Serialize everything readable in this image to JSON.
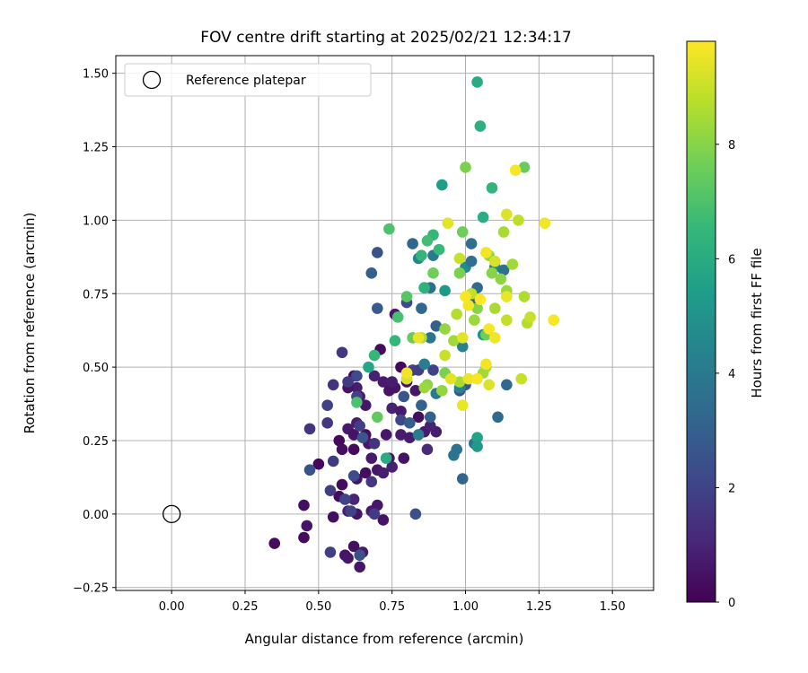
{
  "chart_data": {
    "type": "scatter",
    "title": "FOV centre drift starting at 2025/02/21 12:34:17",
    "xlabel": "Angular distance from reference (arcmin)",
    "ylabel": "Rotation from reference (arcmin)",
    "xlim": [
      -0.19,
      1.64
    ],
    "ylim": [
      -0.26,
      1.56
    ],
    "xticks": [
      "0.00",
      "0.25",
      "0.50",
      "0.75",
      "1.00",
      "1.25",
      "1.50"
    ],
    "xtick_values": [
      0,
      0.25,
      0.5,
      0.75,
      1.0,
      1.25,
      1.5
    ],
    "yticks": [
      "−0.25",
      "0.00",
      "0.25",
      "0.50",
      "0.75",
      "1.00",
      "1.25",
      "1.50"
    ],
    "ytick_values": [
      -0.25,
      0,
      0.25,
      0.5,
      0.75,
      1.0,
      1.25,
      1.5
    ],
    "grid": true,
    "legend": {
      "position": "top-left",
      "entries": [
        "Reference platepar"
      ]
    },
    "reference_point": {
      "x": 0,
      "y": 0
    },
    "colorbar": {
      "label": "Hours from first FF file",
      "range": [
        0,
        9.8
      ],
      "ticks": [
        "0",
        "2",
        "4",
        "6",
        "8"
      ],
      "tick_values": [
        0,
        2,
        4,
        6,
        8
      ],
      "colormap": "viridis",
      "colors": [
        "#440154",
        "#482878",
        "#3e4989",
        "#31688e",
        "#26828e",
        "#1f9e89",
        "#35b779",
        "#6ece58",
        "#b5de2b",
        "#fde725"
      ]
    },
    "points": [
      [
        0.35,
        -0.1,
        0.3
      ],
      [
        0.45,
        0.03,
        0.4
      ],
      [
        0.46,
        -0.04,
        0.5
      ],
      [
        0.45,
        -0.08,
        0.3
      ],
      [
        0.5,
        0.17,
        0.2
      ],
      [
        0.57,
        0.06,
        0.3
      ],
      [
        0.55,
        -0.01,
        0.4
      ],
      [
        0.59,
        -0.14,
        0.5
      ],
      [
        0.6,
        -0.15,
        0.6
      ],
      [
        0.62,
        -0.11,
        0.4
      ],
      [
        0.64,
        -0.18,
        0.6
      ],
      [
        0.65,
        -0.13,
        0.7
      ],
      [
        0.63,
        0.0,
        0.5
      ],
      [
        0.68,
        0.01,
        0.8
      ],
      [
        0.7,
        0.03,
        0.6
      ],
      [
        0.72,
        -0.02,
        0.5
      ],
      [
        0.6,
        0.01,
        0.9
      ],
      [
        0.62,
        0.05,
        1.0
      ],
      [
        0.58,
        0.1,
        0.3
      ],
      [
        0.57,
        0.25,
        0.2
      ],
      [
        0.58,
        0.22,
        0.4
      ],
      [
        0.62,
        0.22,
        0.3
      ],
      [
        0.63,
        0.12,
        0.5
      ],
      [
        0.66,
        0.14,
        0.4
      ],
      [
        0.68,
        0.19,
        0.7
      ],
      [
        0.7,
        0.15,
        0.6
      ],
      [
        0.72,
        0.14,
        0.8
      ],
      [
        0.74,
        0.19,
        0.5
      ],
      [
        0.75,
        0.16,
        0.9
      ],
      [
        0.67,
        0.24,
        0.6
      ],
      [
        0.6,
        0.29,
        0.7
      ],
      [
        0.62,
        0.27,
        0.5
      ],
      [
        0.66,
        0.27,
        0.4
      ],
      [
        0.63,
        0.31,
        0.8
      ],
      [
        0.73,
        0.27,
        0.6
      ],
      [
        0.78,
        0.27,
        0.8
      ],
      [
        0.79,
        0.19,
        0.5
      ],
      [
        0.81,
        0.26,
        0.7
      ],
      [
        0.75,
        0.36,
        0.9
      ],
      [
        0.78,
        0.35,
        0.7
      ],
      [
        0.76,
        0.43,
        0.6
      ],
      [
        0.72,
        0.45,
        0.7
      ],
      [
        0.74,
        0.42,
        0.5
      ],
      [
        0.75,
        0.45,
        0.8
      ],
      [
        0.69,
        0.47,
        0.9
      ],
      [
        0.66,
        0.37,
        0.6
      ],
      [
        0.64,
        0.4,
        0.7
      ],
      [
        0.63,
        0.43,
        0.8
      ],
      [
        0.6,
        0.43,
        0.5
      ],
      [
        0.62,
        0.47,
        0.4
      ],
      [
        0.71,
        0.56,
        0.3
      ],
      [
        0.78,
        0.5,
        0.2
      ],
      [
        0.8,
        0.45,
        0.5
      ],
      [
        0.83,
        0.42,
        0.6
      ],
      [
        0.84,
        0.33,
        0.4
      ],
      [
        0.86,
        0.28,
        0.7
      ],
      [
        0.9,
        0.28,
        0.8
      ],
      [
        0.87,
        0.22,
        1.2
      ],
      [
        0.88,
        0.3,
        0.9
      ],
      [
        0.76,
        0.68,
        0.7
      ],
      [
        0.47,
        0.29,
        1.5
      ],
      [
        0.53,
        0.31,
        1.6
      ],
      [
        0.55,
        0.18,
        1.7
      ],
      [
        0.54,
        0.08,
        1.8
      ],
      [
        0.59,
        0.05,
        2.0
      ],
      [
        0.61,
        0.01,
        1.9
      ],
      [
        0.54,
        -0.13,
        1.8
      ],
      [
        0.58,
        0.55,
        1.6
      ],
      [
        0.55,
        0.44,
        1.5
      ],
      [
        0.53,
        0.37,
        1.9
      ],
      [
        0.6,
        0.45,
        1.7
      ],
      [
        0.63,
        0.4,
        2.0
      ],
      [
        0.63,
        0.47,
        2.2
      ],
      [
        0.64,
        0.3,
        1.8
      ],
      [
        0.69,
        0.24,
        1.5
      ],
      [
        0.68,
        0.11,
        1.6
      ],
      [
        0.69,
        0.0,
        1.7
      ],
      [
        0.64,
        -0.14,
        2.5
      ],
      [
        0.83,
        0.0,
        2.4
      ],
      [
        0.78,
        0.32,
        2.1
      ],
      [
        0.82,
        0.49,
        2.0
      ],
      [
        0.84,
        0.49,
        1.8
      ],
      [
        0.89,
        0.49,
        2.0
      ],
      [
        0.8,
        0.72,
        2.2
      ],
      [
        0.7,
        0.89,
        2.5
      ],
      [
        0.7,
        0.7,
        2.8
      ],
      [
        0.68,
        0.82,
        3.0
      ],
      [
        0.79,
        0.4,
        2.6
      ],
      [
        0.81,
        0.31,
        2.9
      ],
      [
        0.85,
        0.37,
        3.1
      ],
      [
        0.88,
        0.33,
        3.0
      ],
      [
        0.62,
        0.13,
        2.3
      ],
      [
        0.65,
        0.26,
        2.6
      ],
      [
        0.47,
        0.15,
        2.5
      ],
      [
        0.98,
        0.42,
        2.5
      ],
      [
        1.0,
        0.44,
        2.7
      ],
      [
        0.99,
        0.12,
        3.2
      ],
      [
        1.03,
        0.24,
        3.5
      ],
      [
        1.11,
        0.33,
        3.4
      ],
      [
        1.14,
        0.44,
        3.3
      ],
      [
        0.96,
        0.2,
        3.8
      ],
      [
        0.97,
        0.22,
        3.7
      ],
      [
        0.9,
        0.64,
        3.0
      ],
      [
        0.88,
        0.77,
        3.5
      ],
      [
        0.85,
        0.7,
        3.3
      ],
      [
        0.82,
        0.92,
        3.2
      ],
      [
        0.84,
        0.87,
        4.5
      ],
      [
        0.88,
        0.6,
        3.8
      ],
      [
        0.86,
        0.51,
        4.2
      ],
      [
        0.9,
        0.41,
        4.0
      ],
      [
        0.84,
        0.27,
        4.1
      ],
      [
        0.86,
        0.77,
        3.6
      ],
      [
        0.89,
        0.88,
        4.0
      ],
      [
        0.98,
        0.43,
        4.4
      ],
      [
        0.99,
        0.57,
        4.3
      ],
      [
        1.04,
        0.26,
        5.6
      ],
      [
        1.04,
        0.23,
        5.2
      ],
      [
        1.03,
        0.72,
        3.2
      ],
      [
        1.04,
        0.77,
        3.4
      ],
      [
        1.02,
        0.92,
        3.5
      ],
      [
        1.0,
        0.84,
        4.7
      ],
      [
        1.02,
        0.86,
        3.6
      ],
      [
        1.1,
        0.84,
        4.6
      ],
      [
        1.13,
        0.83,
        3.7
      ],
      [
        1.06,
        0.61,
        5.0
      ],
      [
        0.92,
        1.12,
        5.5
      ],
      [
        0.93,
        0.76,
        5.2
      ],
      [
        1.04,
        1.47,
        6.0
      ],
      [
        1.05,
        1.32,
        6.2
      ],
      [
        1.06,
        1.01,
        6.1
      ],
      [
        1.09,
        1.11,
        6.4
      ],
      [
        0.89,
        0.95,
        6.5
      ],
      [
        0.87,
        0.93,
        6.8
      ],
      [
        0.85,
        0.88,
        6.4
      ],
      [
        0.91,
        0.9,
        6.6
      ],
      [
        0.86,
        0.77,
        6.3
      ],
      [
        0.76,
        0.59,
        6.5
      ],
      [
        0.77,
        0.67,
        6.9
      ],
      [
        0.8,
        0.74,
        7.2
      ],
      [
        0.82,
        0.6,
        7.5
      ],
      [
        0.74,
        0.97,
        7.0
      ],
      [
        0.69,
        0.54,
        6.5
      ],
      [
        0.67,
        0.5,
        5.8
      ],
      [
        0.73,
        0.19,
        6.0
      ],
      [
        0.63,
        0.38,
        7.0
      ],
      [
        0.7,
        0.33,
        7.4
      ],
      [
        0.89,
        0.82,
        7.6
      ],
      [
        0.98,
        0.82,
        7.8
      ],
      [
        0.99,
        0.96,
        7.6
      ],
      [
        1.0,
        1.18,
        7.8
      ],
      [
        1.2,
        1.18,
        7.5
      ],
      [
        1.07,
        0.61,
        7.6
      ],
      [
        1.09,
        0.82,
        8.0
      ],
      [
        1.08,
        0.88,
        8.2
      ],
      [
        1.13,
        0.96,
        8.5
      ],
      [
        1.16,
        0.85,
        8.4
      ],
      [
        1.18,
        1.0,
        8.8
      ],
      [
        1.14,
        0.76,
        8.3
      ],
      [
        1.12,
        0.8,
        8.1
      ],
      [
        1.2,
        0.74,
        8.6
      ],
      [
        1.21,
        0.65,
        8.7
      ],
      [
        1.22,
        0.67,
        9.0
      ],
      [
        1.14,
        0.66,
        8.9
      ],
      [
        1.1,
        0.7,
        8.5
      ],
      [
        1.07,
        0.5,
        8.6
      ],
      [
        1.06,
        0.48,
        8.4
      ],
      [
        1.04,
        0.7,
        8.0
      ],
      [
        1.03,
        0.66,
        8.3
      ],
      [
        1.02,
        0.75,
        8.9
      ],
      [
        0.97,
        0.68,
        8.7
      ],
      [
        0.93,
        0.63,
        8.2
      ],
      [
        0.96,
        0.59,
        8.4
      ],
      [
        0.93,
        0.48,
        7.8
      ],
      [
        0.92,
        0.42,
        8.2
      ],
      [
        0.98,
        0.45,
        8.5
      ],
      [
        0.87,
        0.44,
        8.1
      ],
      [
        0.86,
        0.43,
        8.3
      ],
      [
        0.85,
        0.6,
        8.6
      ],
      [
        0.8,
        0.46,
        9.2
      ],
      [
        0.8,
        0.48,
        9.6
      ],
      [
        0.93,
        0.54,
        9.0
      ],
      [
        0.95,
        0.46,
        9.4
      ],
      [
        1.01,
        0.46,
        9.5
      ],
      [
        1.08,
        0.44,
        9.3
      ],
      [
        1.04,
        0.46,
        9.7
      ],
      [
        1.07,
        0.51,
        9.6
      ],
      [
        0.99,
        0.37,
        9.5
      ],
      [
        0.99,
        0.6,
        9.4
      ],
      [
        1.01,
        0.71,
        9.6
      ],
      [
        1.05,
        0.73,
        9.8
      ],
      [
        1.08,
        0.63,
        9.7
      ],
      [
        1.1,
        0.6,
        9.6
      ],
      [
        1.14,
        0.74,
        9.5
      ],
      [
        1.17,
        1.17,
        9.7
      ],
      [
        1.27,
        0.99,
        9.6
      ],
      [
        1.3,
        0.66,
        9.7
      ],
      [
        1.14,
        1.02,
        9.3
      ],
      [
        0.94,
        0.99,
        9.4
      ],
      [
        0.98,
        0.87,
        9.0
      ],
      [
        1.0,
        0.74,
        9.7
      ],
      [
        1.07,
        0.89,
        9.6
      ],
      [
        1.1,
        0.86,
        9.2
      ],
      [
        1.19,
        0.46,
        9.0
      ],
      [
        0.84,
        0.6,
        9.5
      ]
    ]
  }
}
